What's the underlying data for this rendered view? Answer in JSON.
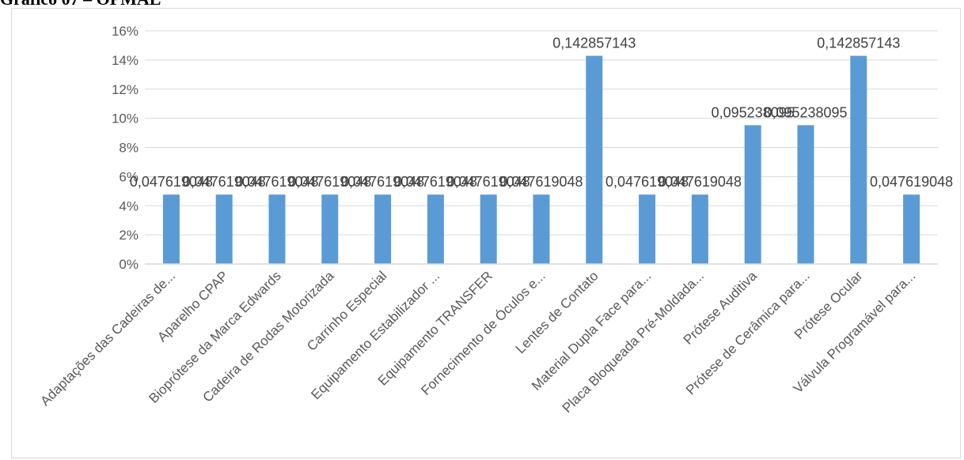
{
  "heading": "Gráfico 07 – OPMAL",
  "chart_data": {
    "type": "bar",
    "categories": [
      "Adaptações das Cadeiras de...",
      "Aparelho CPAP",
      "Bioprótese da Marca Edwards",
      "Cadeira de Rodas Motorizada",
      "Carrinho Especial",
      "Equipamento Estabilizador ...",
      "Equipamento TRANSFER",
      "Fornecimento de Óculos e...",
      "Lentes de Contato",
      "Material Dupla Face para...",
      "Placa Bloqueada Pré-Moldada...",
      "Prótese Auditiva",
      "Prótese de Cerâmica para...",
      "Prótese Ocular",
      "Válvula Programável para..."
    ],
    "values": [
      0.047619048,
      0.047619048,
      0.047619048,
      0.047619048,
      0.047619048,
      0.047619048,
      0.047619048,
      0.047619048,
      0.142857143,
      0.047619048,
      0.047619048,
      0.095238095,
      0.095238095,
      0.142857143,
      0.047619048
    ],
    "data_labels": [
      "0,047619048",
      "0,047619048",
      "0,047619048",
      "0,047619048",
      "0,047619048",
      "0,047619048",
      "0,047619048",
      "0,047619048",
      "0,142857143",
      "0,047619048",
      "0,047619048",
      "0,095238095",
      "0,095238095",
      "0,142857143",
      "0,047619048"
    ],
    "ylim": [
      0,
      0.16
    ],
    "y_ticks": [
      "0%",
      "2%",
      "4%",
      "6%",
      "8%",
      "10%",
      "12%",
      "14%",
      "16%"
    ],
    "grid": true,
    "bar_color": "#5b9bd5",
    "grid_color": "#d9d9d9"
  }
}
